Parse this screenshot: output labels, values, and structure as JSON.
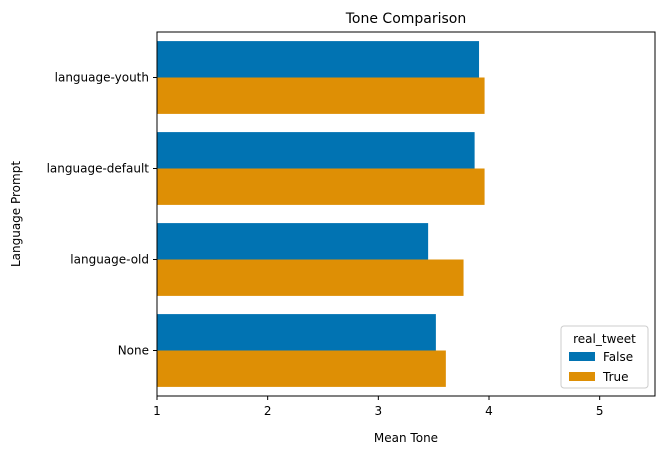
{
  "chart_data": {
    "type": "bar",
    "orientation": "horizontal",
    "title": "Tone Comparison",
    "xlabel": "Mean Tone",
    "ylabel": "Language Prompt",
    "categories": [
      "language-youth",
      "language-default",
      "language-old",
      "None"
    ],
    "xlim": [
      1,
      5.5
    ],
    "xticks": [
      "1",
      "2",
      "3",
      "4",
      "5"
    ],
    "grid": false,
    "legend": {
      "title": "real_tweet",
      "position": "lower-right"
    },
    "series": [
      {
        "name": "False",
        "color": "#0173b2",
        "values": [
          3.91,
          3.87,
          3.45,
          3.52
        ]
      },
      {
        "name": "True",
        "color": "#de8f05",
        "values": [
          3.96,
          3.96,
          3.77,
          3.61
        ]
      }
    ]
  }
}
